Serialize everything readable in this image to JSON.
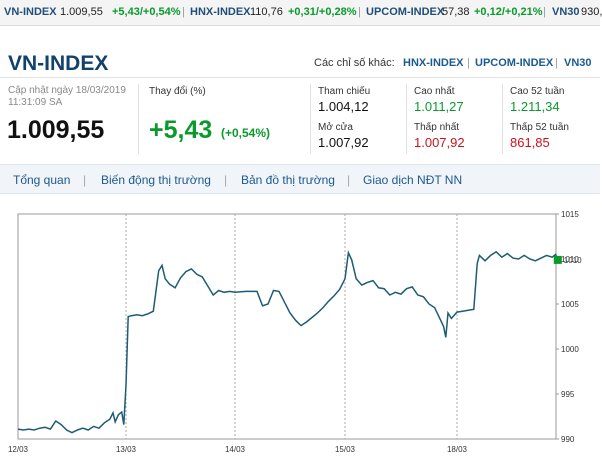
{
  "ticker": [
    {
      "name": "VN-INDEX",
      "value": "1.009,55",
      "change": "+5,43/+0,54%"
    },
    {
      "name": "HNX-INDEX",
      "value": "110,76",
      "change": "+0,31/+0,28%"
    },
    {
      "name": "UPCOM-INDEX",
      "value": "57,38",
      "change": "+0,12/+0,21%"
    },
    {
      "name": "VN30",
      "value": "930,",
      "change": ""
    }
  ],
  "header": {
    "title": "VN-INDEX",
    "others_label": "Các chỉ số khác:",
    "others": [
      "HNX-INDEX",
      "UPCOM-INDEX",
      "VN30"
    ]
  },
  "summary": {
    "updated_line1": "Cập nhật ngày 18/03/2019",
    "updated_line2": "11:31:09 SA",
    "price": "1.009,55",
    "change_label": "Thay đổi (%)",
    "change": "+5,43",
    "change_pct": "(+0,54%)"
  },
  "stats": {
    "ref_label": "Tham chiếu",
    "ref": "1.004,12",
    "open_label": "Mở cửa",
    "open": "1.007,92",
    "high_label": "Cao nhất",
    "high": "1.011,27",
    "low_label": "Thấp nhất",
    "low": "1.007,92",
    "high52_label": "Cao 52 tuần",
    "high52": "1.211,34",
    "low52_label": "Thấp 52 tuần",
    "low52": "861,85"
  },
  "tabs": [
    "Tổng quan",
    "Biến động thị trường",
    "Bản đồ thị trường",
    "Giao dịch NĐT NN"
  ],
  "colors": {
    "line": "#1d5c74",
    "green": "#0a9a2c",
    "red": "#d0101a",
    "title": "#12416b"
  },
  "chart_data": {
    "type": "line",
    "x_ticks": [
      "12/03",
      "13/03",
      "14/03",
      "15/03",
      "18/03"
    ],
    "y_ticks": [
      990,
      995,
      1000,
      1005,
      1010,
      1015
    ],
    "ylim": [
      990,
      1015
    ],
    "marker_label": "1010",
    "series": [
      {
        "values": [
          [
            0,
            991.1
          ],
          [
            0.05,
            991.0
          ],
          [
            0.1,
            991.1
          ],
          [
            0.15,
            991.0
          ],
          [
            0.2,
            991.2
          ],
          [
            0.25,
            991.3
          ],
          [
            0.3,
            991.1
          ],
          [
            0.35,
            992.0
          ],
          [
            0.4,
            991.6
          ],
          [
            0.45,
            991.0
          ],
          [
            0.5,
            990.7
          ],
          [
            0.55,
            991.0
          ],
          [
            0.6,
            991.2
          ],
          [
            0.65,
            991.0
          ],
          [
            0.7,
            991.4
          ],
          [
            0.75,
            991.2
          ],
          [
            0.8,
            991.8
          ],
          [
            0.85,
            992.2
          ],
          [
            0.88,
            992.9
          ],
          [
            0.9,
            991.9
          ],
          [
            0.93,
            992.7
          ],
          [
            0.96,
            993.0
          ],
          [
            0.98,
            991.6
          ],
          [
            1.0,
            996.0
          ],
          [
            1.02,
            1003.6
          ],
          [
            1.05,
            1003.7
          ],
          [
            1.1,
            1003.8
          ],
          [
            1.15,
            1003.7
          ],
          [
            1.2,
            1003.9
          ],
          [
            1.25,
            1004.2
          ],
          [
            1.3,
            1008.7
          ],
          [
            1.33,
            1009.3
          ],
          [
            1.36,
            1007.8
          ],
          [
            1.4,
            1007.2
          ],
          [
            1.45,
            1006.8
          ],
          [
            1.5,
            1007.9
          ],
          [
            1.55,
            1008.6
          ],
          [
            1.6,
            1008.9
          ],
          [
            1.65,
            1008.3
          ],
          [
            1.7,
            1008.0
          ],
          [
            1.75,
            1007.0
          ],
          [
            1.8,
            1006.0
          ],
          [
            1.85,
            1006.5
          ],
          [
            1.9,
            1006.3
          ],
          [
            1.95,
            1006.4
          ],
          [
            2.0,
            1006.3
          ],
          [
            2.1,
            1006.4
          ],
          [
            2.2,
            1006.4
          ],
          [
            2.25,
            1004.8
          ],
          [
            2.3,
            1005.0
          ],
          [
            2.35,
            1006.5
          ],
          [
            2.4,
            1006.4
          ],
          [
            2.45,
            1005.2
          ],
          [
            2.5,
            1004.0
          ],
          [
            2.55,
            1003.2
          ],
          [
            2.6,
            1002.6
          ],
          [
            2.65,
            1003.0
          ],
          [
            2.7,
            1003.5
          ],
          [
            2.75,
            1004.0
          ],
          [
            2.8,
            1004.6
          ],
          [
            2.85,
            1005.3
          ],
          [
            2.9,
            1005.9
          ],
          [
            2.95,
            1006.6
          ],
          [
            3.0,
            1007.8
          ],
          [
            3.03,
            1010.7
          ],
          [
            3.06,
            1009.9
          ],
          [
            3.1,
            1007.8
          ],
          [
            3.15,
            1007.1
          ],
          [
            3.2,
            1007.4
          ],
          [
            3.25,
            1007.6
          ],
          [
            3.3,
            1006.8
          ],
          [
            3.35,
            1006.7
          ],
          [
            3.4,
            1006.0
          ],
          [
            3.45,
            1006.3
          ],
          [
            3.5,
            1006.1
          ],
          [
            3.55,
            1006.7
          ],
          [
            3.6,
            1006.9
          ],
          [
            3.65,
            1006.0
          ],
          [
            3.7,
            1005.8
          ],
          [
            3.75,
            1005.0
          ],
          [
            3.8,
            1004.6
          ],
          [
            3.85,
            1003.3
          ],
          [
            3.88,
            1002.5
          ],
          [
            3.9,
            1001.3
          ],
          [
            3.92,
            1004.0
          ],
          [
            3.95,
            1003.4
          ],
          [
            4.0,
            1004.1
          ],
          [
            4.05,
            1004.2
          ],
          [
            4.1,
            1004.3
          ],
          [
            4.15,
            1004.4
          ],
          [
            4.18,
            1009.5
          ],
          [
            4.2,
            1010.4
          ],
          [
            4.25,
            1009.8
          ],
          [
            4.3,
            1010.4
          ],
          [
            4.35,
            1010.8
          ],
          [
            4.4,
            1010.2
          ],
          [
            4.45,
            1010.6
          ],
          [
            4.5,
            1010.1
          ],
          [
            4.55,
            1010.0
          ],
          [
            4.6,
            1010.4
          ],
          [
            4.65,
            1010.0
          ],
          [
            4.7,
            1009.8
          ],
          [
            4.75,
            1010.1
          ],
          [
            4.8,
            1010.4
          ],
          [
            4.85,
            1010.2
          ],
          [
            4.88,
            1010.5
          ],
          [
            4.9,
            1009.9
          ]
        ]
      }
    ]
  }
}
